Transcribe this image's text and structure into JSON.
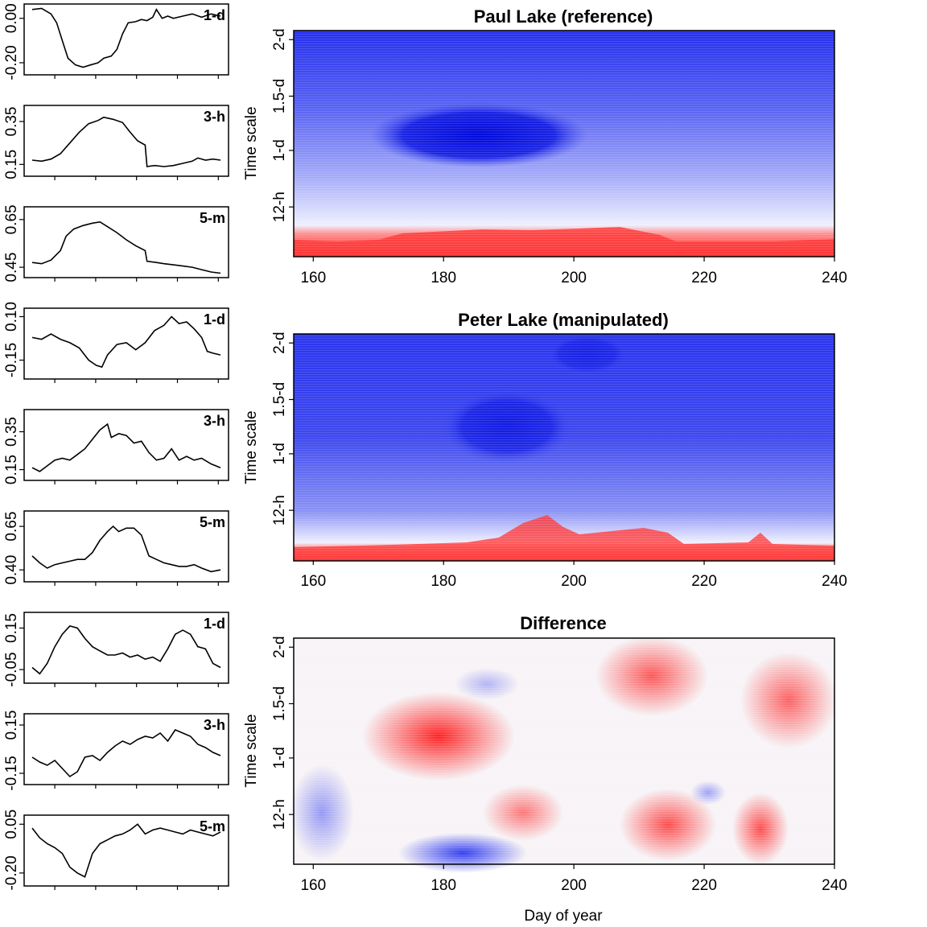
{
  "chart_data": [
    {
      "type": "line",
      "group": "Paul Lake (reference)",
      "panels": [
        {
          "label": "1-d",
          "yticks": [
            "0.00",
            "-0.20"
          ],
          "ylim": [
            -0.24,
            0.05
          ],
          "points": [
            [
              0,
              0.04
            ],
            [
              0.05,
              0.045
            ],
            [
              0.1,
              0.02
            ],
            [
              0.13,
              -0.02
            ],
            [
              0.16,
              -0.1
            ],
            [
              0.19,
              -0.18
            ],
            [
              0.23,
              -0.21
            ],
            [
              0.27,
              -0.22
            ],
            [
              0.31,
              -0.21
            ],
            [
              0.35,
              -0.2
            ],
            [
              0.38,
              -0.18
            ],
            [
              0.42,
              -0.17
            ],
            [
              0.45,
              -0.14
            ],
            [
              0.48,
              -0.07
            ],
            [
              0.51,
              -0.02
            ],
            [
              0.55,
              -0.015
            ],
            [
              0.58,
              -0.005
            ],
            [
              0.61,
              -0.01
            ],
            [
              0.64,
              0.005
            ],
            [
              0.66,
              0.04
            ],
            [
              0.69,
              0.0
            ],
            [
              0.72,
              0.01
            ],
            [
              0.75,
              0.0
            ],
            [
              0.8,
              0.01
            ],
            [
              0.85,
              0.02
            ],
            [
              0.9,
              0.005
            ],
            [
              0.95,
              0.02
            ],
            [
              1.0,
              0.01
            ]
          ]
        },
        {
          "label": "3-h",
          "yticks": [
            "0.35",
            "0.15"
          ],
          "ylim": [
            0.11,
            0.41
          ],
          "points": [
            [
              0,
              0.17
            ],
            [
              0.05,
              0.165
            ],
            [
              0.1,
              0.175
            ],
            [
              0.15,
              0.2
            ],
            [
              0.2,
              0.25
            ],
            [
              0.25,
              0.3
            ],
            [
              0.3,
              0.34
            ],
            [
              0.35,
              0.355
            ],
            [
              0.38,
              0.37
            ],
            [
              0.43,
              0.36
            ],
            [
              0.48,
              0.345
            ],
            [
              0.52,
              0.3
            ],
            [
              0.56,
              0.26
            ],
            [
              0.6,
              0.24
            ],
            [
              0.61,
              0.14
            ],
            [
              0.65,
              0.145
            ],
            [
              0.7,
              0.14
            ],
            [
              0.75,
              0.145
            ],
            [
              0.8,
              0.155
            ],
            [
              0.85,
              0.165
            ],
            [
              0.88,
              0.18
            ],
            [
              0.92,
              0.17
            ],
            [
              0.96,
              0.175
            ],
            [
              1.0,
              0.17
            ]
          ]
        },
        {
          "label": "5-m",
          "yticks": [
            "0.65",
            "0.45"
          ],
          "ylim": [
            0.42,
            0.69
          ],
          "points": [
            [
              0,
              0.47
            ],
            [
              0.05,
              0.465
            ],
            [
              0.1,
              0.48
            ],
            [
              0.15,
              0.52
            ],
            [
              0.18,
              0.58
            ],
            [
              0.22,
              0.61
            ],
            [
              0.27,
              0.625
            ],
            [
              0.32,
              0.635
            ],
            [
              0.36,
              0.64
            ],
            [
              0.4,
              0.62
            ],
            [
              0.45,
              0.595
            ],
            [
              0.5,
              0.565
            ],
            [
              0.55,
              0.54
            ],
            [
              0.6,
              0.52
            ],
            [
              0.61,
              0.475
            ],
            [
              0.66,
              0.47
            ],
            [
              0.7,
              0.465
            ],
            [
              0.75,
              0.46
            ],
            [
              0.8,
              0.455
            ],
            [
              0.85,
              0.45
            ],
            [
              0.9,
              0.44
            ],
            [
              0.95,
              0.43
            ],
            [
              1.0,
              0.425
            ]
          ]
        },
        {
          "label": "1-d",
          "yticks": [
            "0.10",
            "-0.15"
          ],
          "ylim": [
            -0.24,
            0.13
          ],
          "points": [
            [
              0,
              -0.02
            ],
            [
              0.05,
              -0.03
            ],
            [
              0.1,
              0.0
            ],
            [
              0.15,
              -0.03
            ],
            [
              0.2,
              -0.05
            ],
            [
              0.25,
              -0.08
            ],
            [
              0.3,
              -0.15
            ],
            [
              0.34,
              -0.18
            ],
            [
              0.37,
              -0.19
            ],
            [
              0.4,
              -0.12
            ],
            [
              0.45,
              -0.06
            ],
            [
              0.5,
              -0.05
            ],
            [
              0.55,
              -0.09
            ],
            [
              0.6,
              -0.05
            ],
            [
              0.65,
              0.02
            ],
            [
              0.7,
              0.05
            ],
            [
              0.74,
              0.1
            ],
            [
              0.78,
              0.06
            ],
            [
              0.82,
              0.07
            ],
            [
              0.86,
              0.03
            ],
            [
              0.9,
              -0.02
            ],
            [
              0.93,
              -0.1
            ],
            [
              0.96,
              -0.11
            ],
            [
              1.0,
              -0.12
            ]
          ]
        },
        {
          "label": "3-h",
          "yticks": [
            "0.35",
            "0.15"
          ],
          "ylim": [
            0.11,
            0.45
          ],
          "points": [
            [
              0,
              0.16
            ],
            [
              0.04,
              0.14
            ],
            [
              0.08,
              0.17
            ],
            [
              0.12,
              0.2
            ],
            [
              0.16,
              0.21
            ],
            [
              0.2,
              0.2
            ],
            [
              0.24,
              0.23
            ],
            [
              0.28,
              0.26
            ],
            [
              0.32,
              0.31
            ],
            [
              0.36,
              0.36
            ],
            [
              0.4,
              0.39
            ],
            [
              0.42,
              0.32
            ],
            [
              0.46,
              0.34
            ],
            [
              0.5,
              0.33
            ],
            [
              0.54,
              0.29
            ],
            [
              0.58,
              0.3
            ],
            [
              0.62,
              0.24
            ],
            [
              0.66,
              0.2
            ],
            [
              0.7,
              0.21
            ],
            [
              0.74,
              0.26
            ],
            [
              0.78,
              0.2
            ],
            [
              0.82,
              0.22
            ],
            [
              0.86,
              0.2
            ],
            [
              0.9,
              0.21
            ],
            [
              0.95,
              0.18
            ],
            [
              1.0,
              0.16
            ]
          ]
        },
        {
          "label": "5-m",
          "yticks": [
            "0.65",
            "0.40"
          ],
          "ylim": [
            0.35,
            0.72
          ],
          "points": [
            [
              0,
              0.48
            ],
            [
              0.04,
              0.44
            ],
            [
              0.08,
              0.41
            ],
            [
              0.12,
              0.43
            ],
            [
              0.16,
              0.44
            ],
            [
              0.2,
              0.45
            ],
            [
              0.24,
              0.46
            ],
            [
              0.28,
              0.46
            ],
            [
              0.32,
              0.5
            ],
            [
              0.36,
              0.57
            ],
            [
              0.4,
              0.62
            ],
            [
              0.43,
              0.65
            ],
            [
              0.46,
              0.62
            ],
            [
              0.5,
              0.64
            ],
            [
              0.54,
              0.64
            ],
            [
              0.58,
              0.6
            ],
            [
              0.62,
              0.48
            ],
            [
              0.66,
              0.46
            ],
            [
              0.7,
              0.44
            ],
            [
              0.74,
              0.43
            ],
            [
              0.78,
              0.42
            ],
            [
              0.82,
              0.42
            ],
            [
              0.86,
              0.43
            ],
            [
              0.9,
              0.41
            ],
            [
              0.95,
              0.39
            ],
            [
              1.0,
              0.4
            ]
          ]
        },
        {
          "label": "1-d",
          "yticks": [
            "0.15",
            "-0.05"
          ],
          "ylim": [
            -0.1,
            0.21
          ],
          "points": [
            [
              0,
              -0.04
            ],
            [
              0.04,
              -0.07
            ],
            [
              0.08,
              -0.02
            ],
            [
              0.12,
              0.06
            ],
            [
              0.16,
              0.12
            ],
            [
              0.2,
              0.16
            ],
            [
              0.24,
              0.15
            ],
            [
              0.28,
              0.1
            ],
            [
              0.32,
              0.06
            ],
            [
              0.36,
              0.04
            ],
            [
              0.4,
              0.02
            ],
            [
              0.44,
              0.02
            ],
            [
              0.48,
              0.03
            ],
            [
              0.52,
              0.01
            ],
            [
              0.56,
              0.02
            ],
            [
              0.6,
              0.0
            ],
            [
              0.64,
              0.01
            ],
            [
              0.68,
              -0.01
            ],
            [
              0.72,
              0.05
            ],
            [
              0.76,
              0.12
            ],
            [
              0.8,
              0.14
            ],
            [
              0.84,
              0.12
            ],
            [
              0.88,
              0.06
            ],
            [
              0.92,
              0.05
            ],
            [
              0.96,
              -0.02
            ],
            [
              1.0,
              -0.04
            ]
          ]
        },
        {
          "label": "3-h",
          "yticks": [
            "0.15",
            "-0.15"
          ],
          "ylim": [
            -0.2,
            0.2
          ],
          "points": [
            [
              0,
              -0.05
            ],
            [
              0.04,
              -0.08
            ],
            [
              0.08,
              -0.1
            ],
            [
              0.12,
              -0.07
            ],
            [
              0.16,
              -0.12
            ],
            [
              0.2,
              -0.17
            ],
            [
              0.24,
              -0.14
            ],
            [
              0.28,
              -0.05
            ],
            [
              0.32,
              -0.04
            ],
            [
              0.36,
              -0.07
            ],
            [
              0.4,
              -0.02
            ],
            [
              0.44,
              0.02
            ],
            [
              0.48,
              0.05
            ],
            [
              0.52,
              0.03
            ],
            [
              0.56,
              0.06
            ],
            [
              0.6,
              0.08
            ],
            [
              0.64,
              0.07
            ],
            [
              0.68,
              0.1
            ],
            [
              0.72,
              0.05
            ],
            [
              0.76,
              0.12
            ],
            [
              0.8,
              0.1
            ],
            [
              0.84,
              0.08
            ],
            [
              0.88,
              0.03
            ],
            [
              0.92,
              0.01
            ],
            [
              0.96,
              -0.02
            ],
            [
              1.0,
              -0.04
            ]
          ]
        },
        {
          "label": "5-m",
          "yticks": [
            "0.05",
            "-0.20"
          ],
          "ylim": [
            -0.25,
            0.08
          ],
          "points": [
            [
              0,
              0.03
            ],
            [
              0.04,
              -0.02
            ],
            [
              0.08,
              -0.05
            ],
            [
              0.12,
              -0.07
            ],
            [
              0.16,
              -0.1
            ],
            [
              0.2,
              -0.17
            ],
            [
              0.24,
              -0.2
            ],
            [
              0.28,
              -0.22
            ],
            [
              0.32,
              -0.1
            ],
            [
              0.36,
              -0.05
            ],
            [
              0.4,
              -0.03
            ],
            [
              0.44,
              -0.01
            ],
            [
              0.48,
              0.0
            ],
            [
              0.52,
              0.02
            ],
            [
              0.56,
              0.05
            ],
            [
              0.6,
              0.0
            ],
            [
              0.64,
              0.02
            ],
            [
              0.68,
              0.03
            ],
            [
              0.72,
              0.02
            ],
            [
              0.76,
              0.01
            ],
            [
              0.8,
              0.0
            ],
            [
              0.84,
              0.02
            ],
            [
              0.88,
              0.01
            ],
            [
              0.92,
              0.0
            ],
            [
              0.96,
              -0.01
            ],
            [
              1.0,
              0.01
            ]
          ]
        }
      ]
    },
    {
      "type": "heatmap",
      "title": "Paul Lake (reference)",
      "ylabel": "Time scale",
      "xlim": [
        157,
        240
      ],
      "xticks": [
        "160",
        "180",
        "200",
        "220",
        "240"
      ],
      "yticks": [
        "2-d",
        "1.5-d",
        "1-d",
        "12-h"
      ]
    },
    {
      "type": "heatmap",
      "title": "Peter Lake (manipulated)",
      "ylabel": "Time scale",
      "xlim": [
        157,
        240
      ],
      "xticks": [
        "160",
        "180",
        "200",
        "220",
        "240"
      ],
      "yticks": [
        "2-d",
        "1.5-d",
        "1-d",
        "12-h"
      ]
    },
    {
      "type": "heatmap",
      "title": "Difference",
      "ylabel": "Time scale",
      "xlabel": "Day of year",
      "xlim": [
        157,
        240
      ],
      "xticks": [
        "160",
        "180",
        "200",
        "220",
        "240"
      ],
      "yticks": [
        "2-d",
        "1.5-d",
        "1-d",
        "12-h"
      ]
    }
  ]
}
